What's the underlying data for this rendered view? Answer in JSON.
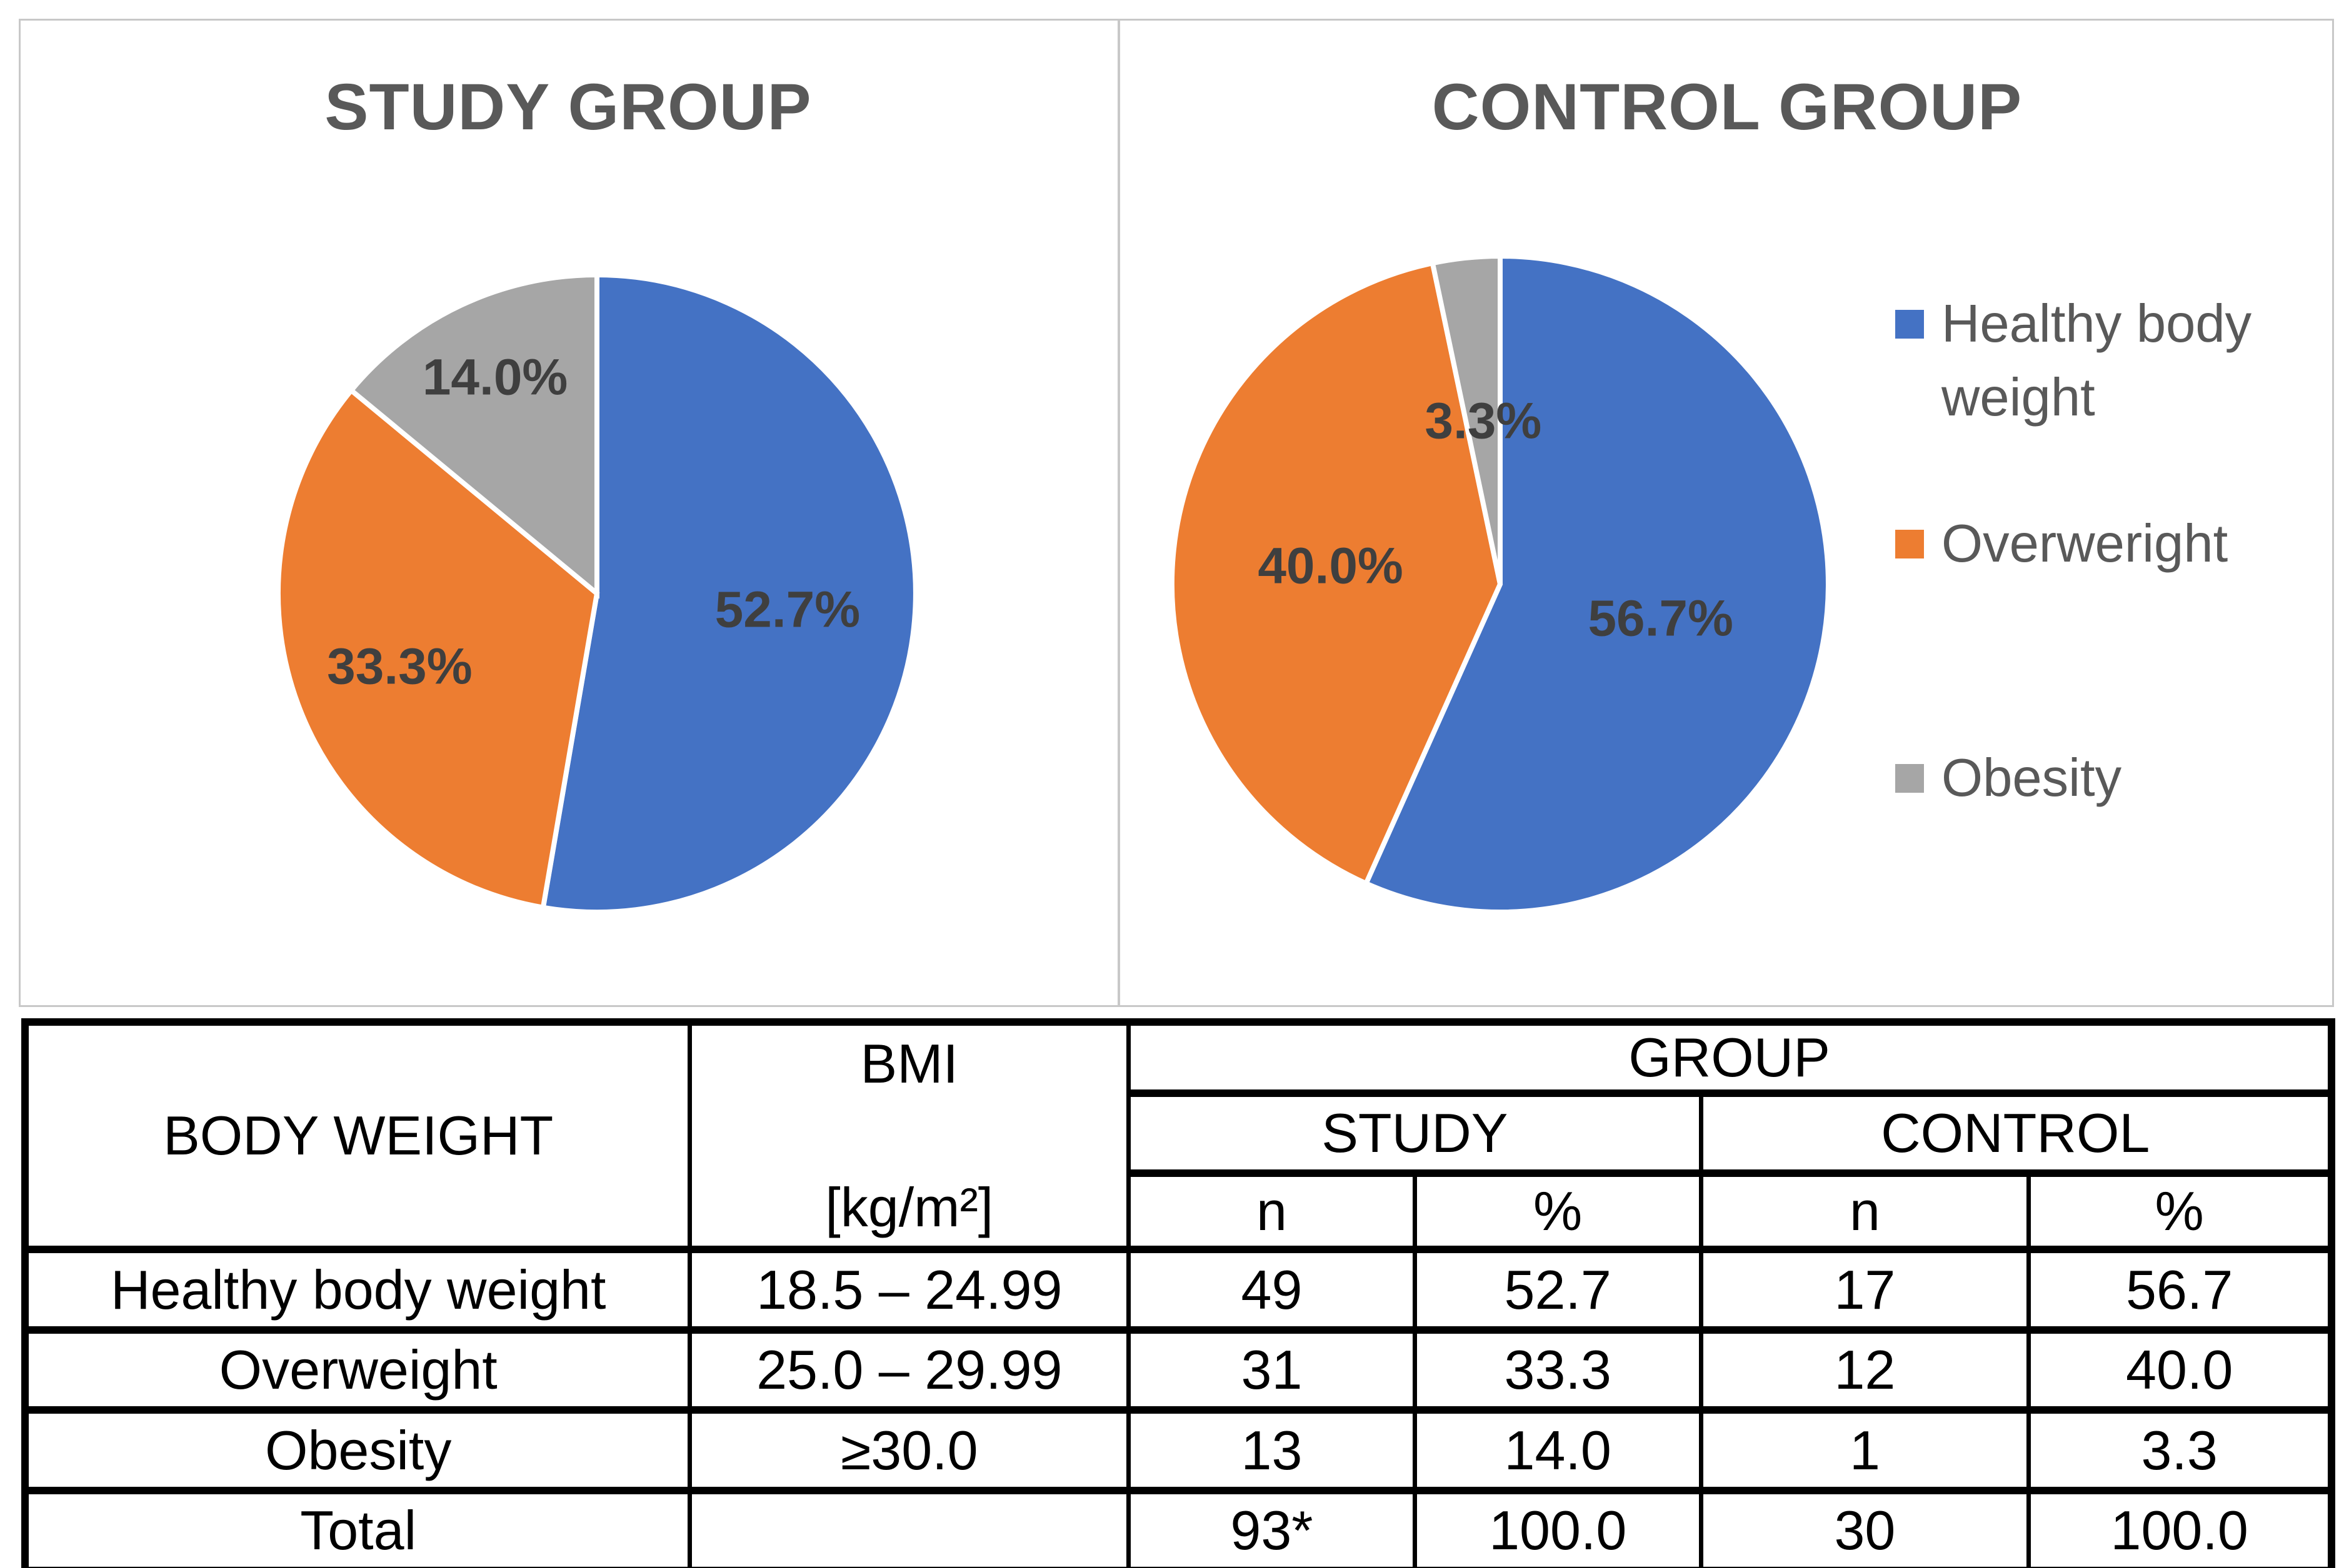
{
  "colors": {
    "healthy_blue": "#4472C4",
    "overweight_orange": "#ED7D31",
    "obesity_gray": "#A6A6A6",
    "title_gray": "#595959",
    "pie_label_gray": "#3F3F3F",
    "panel_border": "#C8C8C8"
  },
  "chart_data": [
    {
      "type": "pie",
      "title": "STUDY GROUP",
      "categories": [
        "Healthy body weight",
        "Overweright",
        "Obesity"
      ],
      "values": [
        52.7,
        33.3,
        14.0
      ],
      "data_labels": [
        "52.7%",
        "33.3%",
        "14.0%"
      ],
      "colors": [
        "#4472C4",
        "#ED7D31",
        "#A6A6A6"
      ],
      "start_angle": 0,
      "direction": "clockwise",
      "legend_position": "none"
    },
    {
      "type": "pie",
      "title": "CONTROL GROUP",
      "categories": [
        "Healthy body weight",
        "Overweright",
        "Obesity"
      ],
      "values": [
        56.7,
        40.0,
        3.3
      ],
      "data_labels": [
        "56.7%",
        "40.0%",
        "3.3%"
      ],
      "colors": [
        "#4472C4",
        "#ED7D31",
        "#A6A6A6"
      ],
      "start_angle": 0,
      "direction": "clockwise",
      "legend_position": "right"
    }
  ],
  "titles": {
    "study": "STUDY GROUP",
    "control": "CONTROL GROUP"
  },
  "legend": {
    "items": [
      {
        "label": "Healthy body weight",
        "color": "#4472C4"
      },
      {
        "label": "Overweright",
        "color": "#ED7D31"
      },
      {
        "label": "Obesity",
        "color": "#A6A6A6"
      }
    ]
  },
  "table": {
    "headers": {
      "body_weight": "BODY WEIGHT",
      "bmi_line1": "BMI",
      "bmi_line2": "[kg/m²]",
      "group": "GROUP",
      "study": "STUDY",
      "control": "CONTROL",
      "n": "n",
      "pct": "%"
    },
    "rows": [
      {
        "label": "Healthy body weight",
        "bmi": "18.5 – 24.99",
        "study_n": "49",
        "study_pct": "52.7",
        "control_n": "17",
        "control_pct": "56.7"
      },
      {
        "label": "Overweight",
        "bmi": "25.0 – 29.99",
        "study_n": "31",
        "study_pct": "33.3",
        "control_n": "12",
        "control_pct": "40.0"
      },
      {
        "label": "Obesity",
        "bmi": "≥30.0",
        "study_n": "13",
        "study_pct": "14.0",
        "control_n": "1",
        "control_pct": "3.3"
      },
      {
        "label": "Total",
        "bmi": "",
        "study_n": "93*",
        "study_pct": "100.0",
        "control_n": "30",
        "control_pct": "100.0"
      }
    ]
  }
}
